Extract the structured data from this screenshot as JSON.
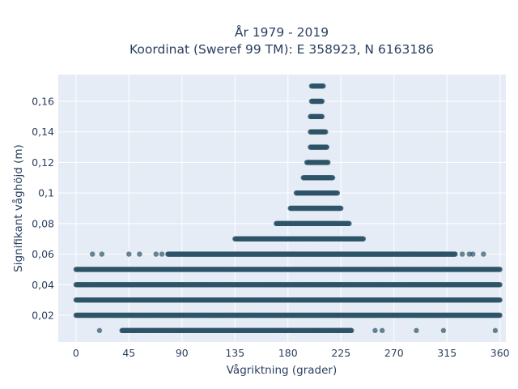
{
  "chart_data": {
    "type": "scatter",
    "title_lines": [
      "År 1979 - 2019",
      "Koordinat (Sweref 99 TM): E 358923, N 6163186"
    ],
    "xlabel": "Vågriktning (grader)",
    "ylabel": "Signifikant våghöjd (m)",
    "xlim": [
      -15,
      365
    ],
    "ylim": [
      0.0025,
      0.1775
    ],
    "x_ticks": [
      0,
      45,
      90,
      135,
      180,
      225,
      270,
      315,
      360
    ],
    "y_ticks": [
      0.02,
      0.04,
      0.06,
      0.08,
      0.1,
      0.12,
      0.14,
      0.16
    ],
    "y_tick_labels": [
      "0,02",
      "0,04",
      "0,06",
      "0,08",
      "0,1",
      "0,12",
      "0,14",
      "0,16"
    ],
    "grid": true,
    "plot_bgcolor": "#e5ecf6",
    "marker_color": "#2e5468",
    "bands": [
      {
        "y": 0.01,
        "x_min": 39,
        "x_max": 234
      },
      {
        "y": 0.02,
        "x_min": 0,
        "x_max": 360
      },
      {
        "y": 0.03,
        "x_min": 0,
        "x_max": 360
      },
      {
        "y": 0.04,
        "x_min": 0,
        "x_max": 360
      },
      {
        "y": 0.05,
        "x_min": 0,
        "x_max": 360
      },
      {
        "y": 0.06,
        "x_min": 78,
        "x_max": 322
      },
      {
        "y": 0.07,
        "x_min": 135,
        "x_max": 244
      },
      {
        "y": 0.08,
        "x_min": 170,
        "x_max": 232
      },
      {
        "y": 0.09,
        "x_min": 182,
        "x_max": 225
      },
      {
        "y": 0.1,
        "x_min": 187,
        "x_max": 222
      },
      {
        "y": 0.11,
        "x_min": 193,
        "x_max": 218
      },
      {
        "y": 0.12,
        "x_min": 196,
        "x_max": 214
      },
      {
        "y": 0.13,
        "x_min": 199,
        "x_max": 213
      },
      {
        "y": 0.14,
        "x_min": 199,
        "x_max": 212
      },
      {
        "y": 0.15,
        "x_min": 199,
        "x_max": 209
      },
      {
        "y": 0.16,
        "x_min": 200,
        "x_max": 209
      },
      {
        "y": 0.17,
        "x_min": 200,
        "x_max": 210
      }
    ],
    "outliers": [
      {
        "x": 14,
        "y": 0.06
      },
      {
        "x": 22,
        "y": 0.06
      },
      {
        "x": 45,
        "y": 0.06
      },
      {
        "x": 54,
        "y": 0.06
      },
      {
        "x": 68,
        "y": 0.06
      },
      {
        "x": 73,
        "y": 0.06
      },
      {
        "x": 328,
        "y": 0.06
      },
      {
        "x": 334,
        "y": 0.06
      },
      {
        "x": 337,
        "y": 0.06
      },
      {
        "x": 346,
        "y": 0.06
      },
      {
        "x": 20,
        "y": 0.01
      },
      {
        "x": 254,
        "y": 0.01
      },
      {
        "x": 260,
        "y": 0.01
      },
      {
        "x": 289,
        "y": 0.01
      },
      {
        "x": 312,
        "y": 0.01
      },
      {
        "x": 356,
        "y": 0.01
      },
      {
        "x": 180,
        "y": 0.01
      },
      {
        "x": 194,
        "y": 0.01
      },
      {
        "x": 204,
        "y": 0.01
      },
      {
        "x": 212,
        "y": 0.01
      },
      {
        "x": 224,
        "y": 0.01
      },
      {
        "x": 229,
        "y": 0.01
      },
      {
        "x": 75,
        "y": 0.01
      },
      {
        "x": 106,
        "y": 0.01
      }
    ]
  }
}
